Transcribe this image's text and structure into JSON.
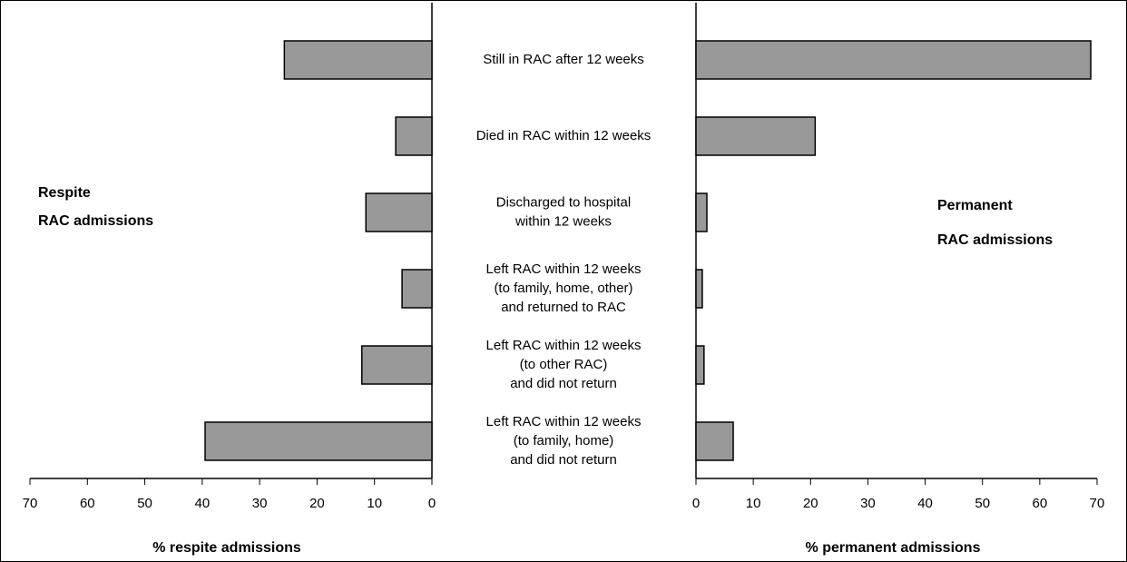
{
  "chart_data": {
    "type": "butterfly",
    "categories": [
      [
        "Still in RAC after 12 weeks"
      ],
      [
        "Died in RAC within 12 weeks"
      ],
      [
        "Discharged to hospital",
        "within 12 weeks"
      ],
      [
        "Left RAC within 12 weeks",
        "(to family, home, other)",
        "and returned to RAC"
      ],
      [
        "Left RAC within 12 weeks",
        "(to other RAC)",
        "and did not return"
      ],
      [
        "Left RAC within 12 weeks",
        "(to family, home)",
        "and did not return"
      ]
    ],
    "panels": [
      {
        "label": [
          "Respite",
          "RAC admissions"
        ],
        "xlabel": "% respite admissions",
        "reversed": true,
        "color": "#999999",
        "values": [
          25.7,
          6.3,
          11.5,
          5.2,
          12.2,
          39.5
        ],
        "xlim": [
          0,
          70
        ],
        "xticks": [
          0,
          10,
          20,
          30,
          40,
          50,
          60,
          70
        ]
      },
      {
        "label": [
          "Permanent",
          "RAC admissions"
        ],
        "xlabel": "% permanent admissions",
        "reversed": false,
        "color": "#999999",
        "values": [
          68.9,
          20.8,
          1.9,
          1.1,
          1.4,
          6.5
        ],
        "xlim": [
          0,
          70
        ],
        "xticks": [
          0,
          10,
          20,
          30,
          40,
          50,
          60,
          70
        ]
      }
    ]
  }
}
